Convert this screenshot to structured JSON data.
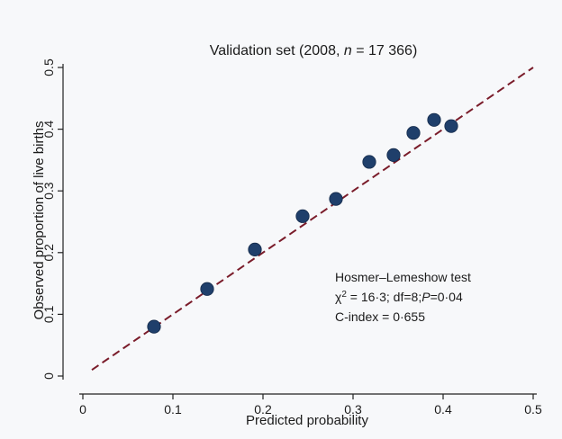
{
  "chart_data": {
    "type": "scatter",
    "title_parts": [
      "Validation set (2008, ",
      "n",
      " = 17 366)"
    ],
    "xlabel": "Predicted probability",
    "ylabel": "Observed proportion of live births",
    "xlim": [
      0,
      0.5
    ],
    "ylim": [
      0,
      0.5
    ],
    "x_ticks": [
      "0",
      "0.1",
      "0.2",
      "0.3",
      "0.4",
      "0.5"
    ],
    "y_ticks": [
      "0",
      "0.1",
      "0.2",
      "0.3",
      "0.4",
      "0.5"
    ],
    "grid": false,
    "points": [
      {
        "x": 0.079,
        "y": 0.08
      },
      {
        "x": 0.138,
        "y": 0.141
      },
      {
        "x": 0.191,
        "y": 0.205
      },
      {
        "x": 0.244,
        "y": 0.259
      },
      {
        "x": 0.281,
        "y": 0.287
      },
      {
        "x": 0.318,
        "y": 0.347
      },
      {
        "x": 0.345,
        "y": 0.358
      },
      {
        "x": 0.367,
        "y": 0.394
      },
      {
        "x": 0.39,
        "y": 0.415
      },
      {
        "x": 0.409,
        "y": 0.405
      }
    ],
    "reference_line": {
      "from": [
        0.01,
        0.01
      ],
      "to": [
        0.5,
        0.5
      ],
      "style": "dashed"
    },
    "annotations": {
      "test_name": "Hosmer–Lemeshow test",
      "chi_symbol": "χ",
      "chi_exponent": "2",
      "stats_mid": " = 16·3; df=8;",
      "p_symbol": "P",
      "p_value": "=0·04",
      "c_index": "C-index = 0·655"
    },
    "colors": {
      "points": "#1f3f6b",
      "reference_line": "#7a1c2a",
      "axis": "#222222"
    }
  }
}
